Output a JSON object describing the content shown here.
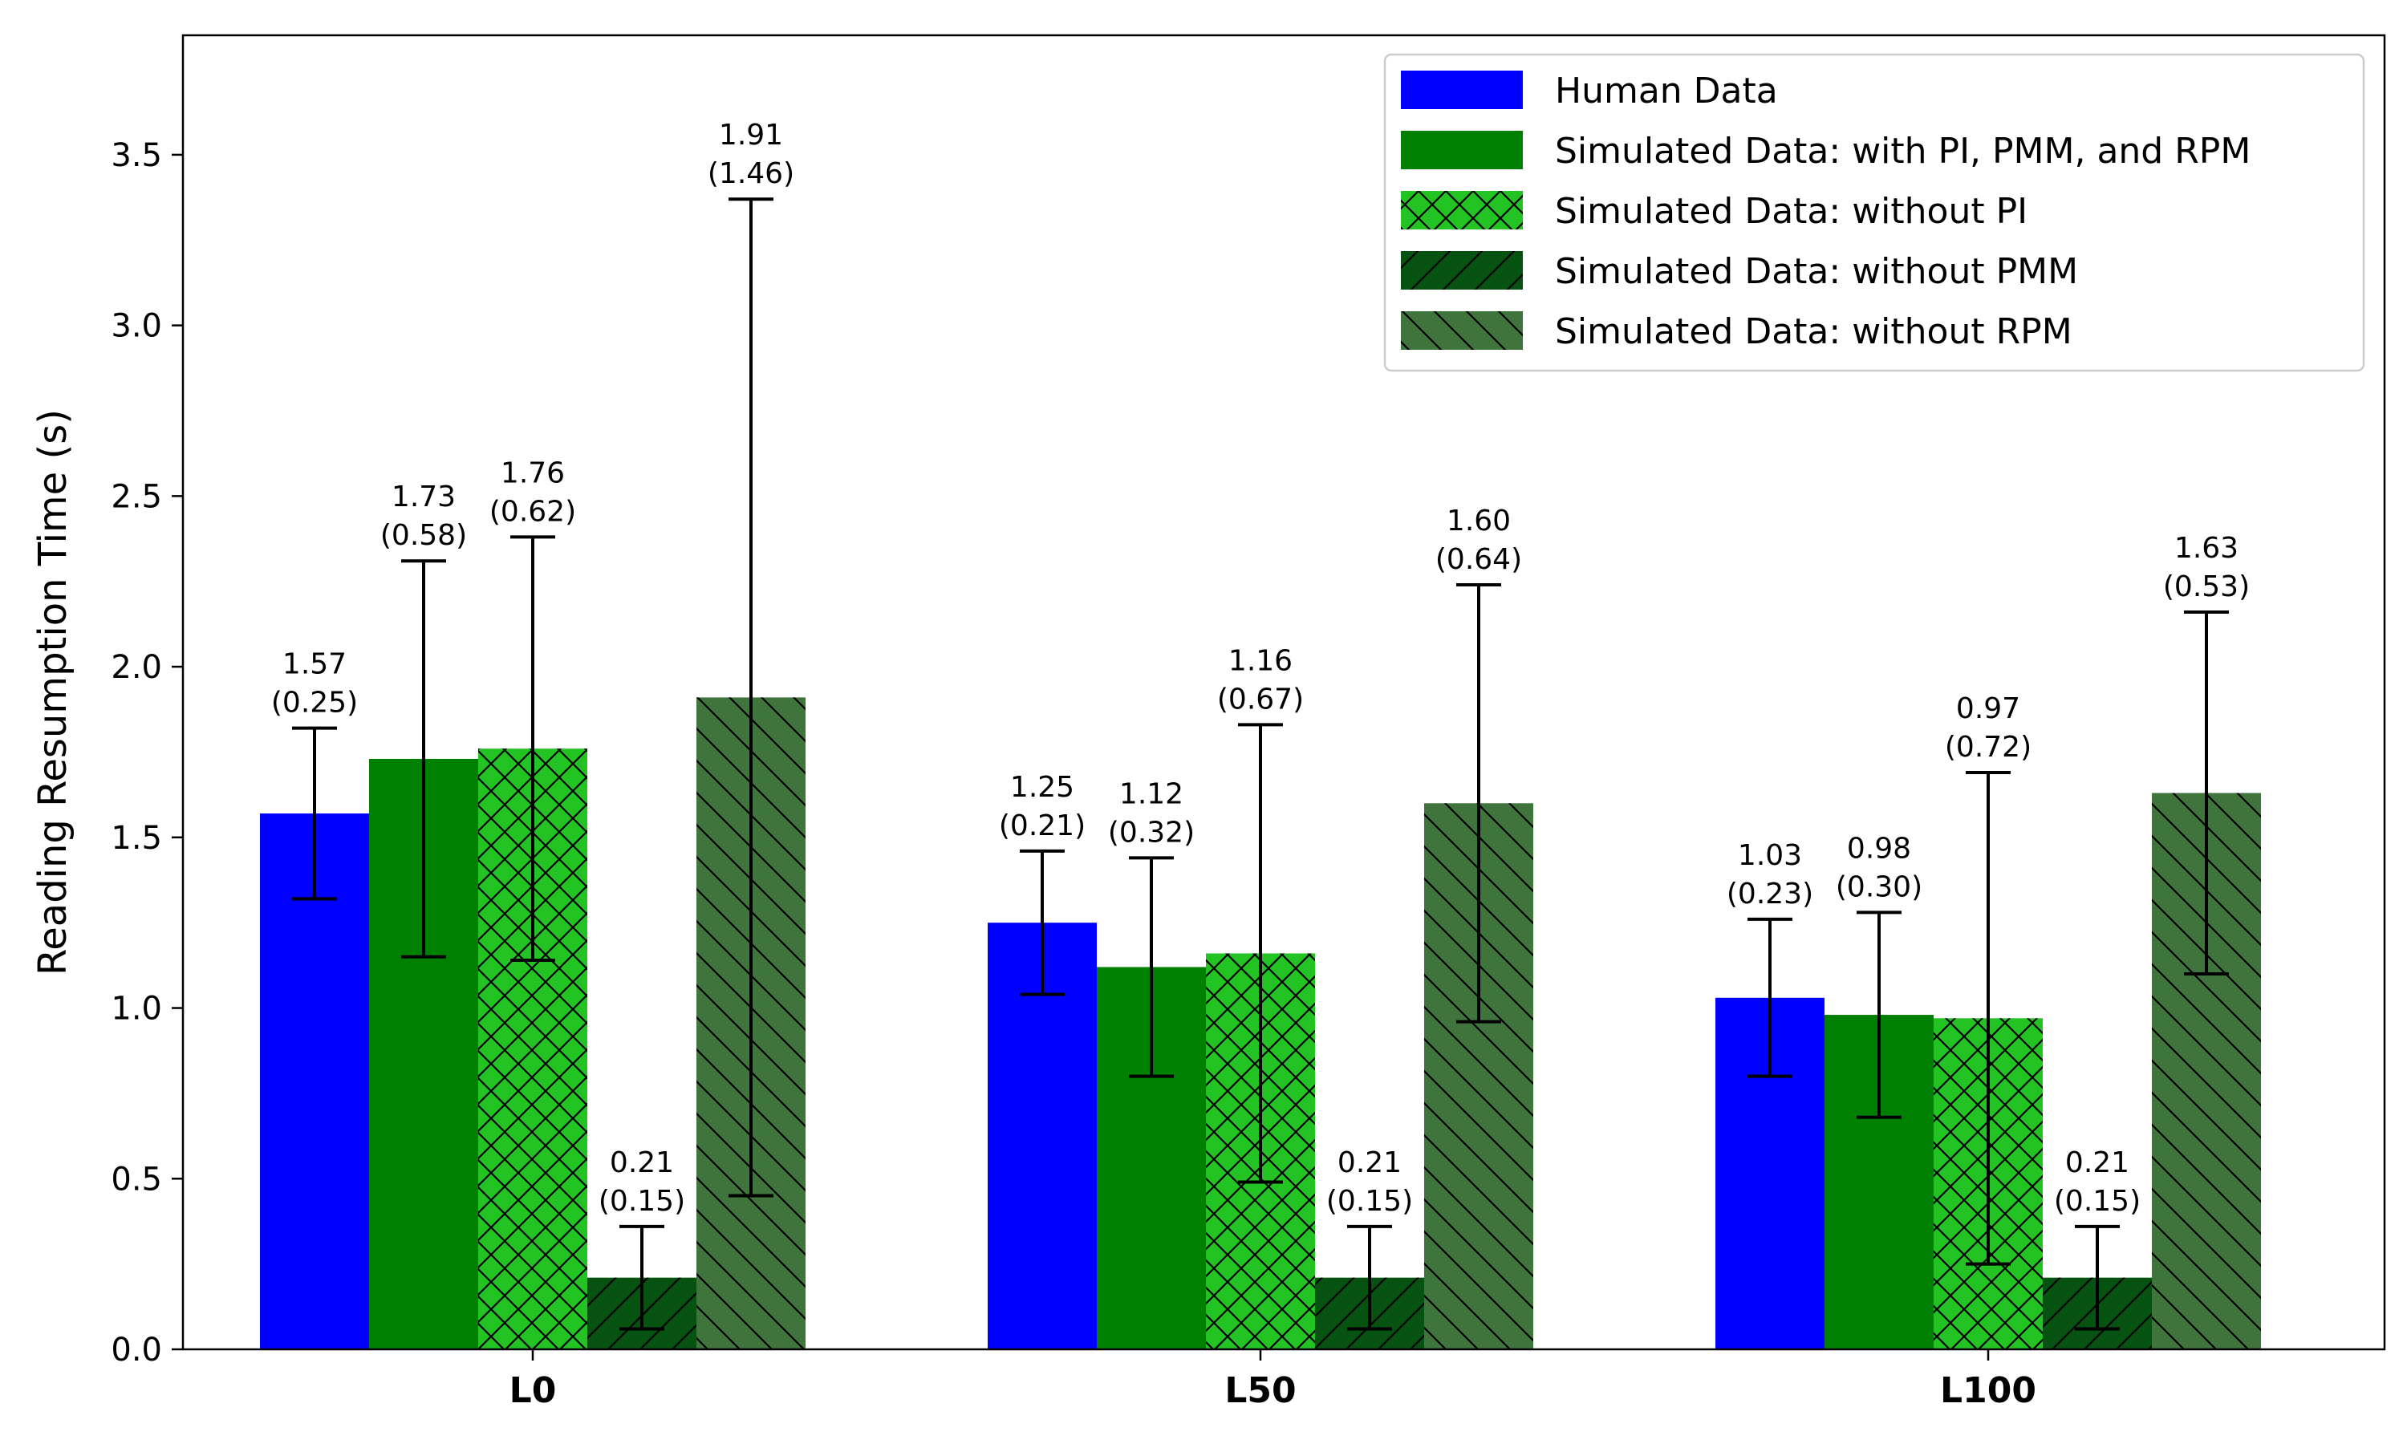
{
  "chart_data": {
    "type": "bar",
    "title": "",
    "xlabel": "",
    "ylabel": "Reading Resumption Time (s)",
    "ylim": [
      0,
      3.85
    ],
    "yticks": [
      "0.0",
      "0.5",
      "1.0",
      "1.5",
      "2.0",
      "2.5",
      "3.0",
      "3.5"
    ],
    "categories": [
      "L0",
      "L50",
      "L100"
    ],
    "grid": false,
    "legend_position": "top-right",
    "series": [
      {
        "name": "Human Data",
        "color": "#0000ff",
        "hatch": "none",
        "values": [
          1.57,
          1.25,
          1.03
        ],
        "errors": [
          0.25,
          0.21,
          0.23
        ],
        "labels": [
          [
            "1.57",
            "(0.25)"
          ],
          [
            "1.25",
            "(0.21)"
          ],
          [
            "1.03",
            "(0.23)"
          ]
        ]
      },
      {
        "name": "Simulated Data: with PI, PMM, and RPM",
        "color": "#008000",
        "hatch": "none",
        "values": [
          1.73,
          1.12,
          0.98
        ],
        "errors": [
          0.58,
          0.32,
          0.3
        ],
        "labels": [
          [
            "1.73",
            "(0.58)"
          ],
          [
            "1.12",
            "(0.32)"
          ],
          [
            "0.98",
            "(0.30)"
          ]
        ]
      },
      {
        "name": "Simulated Data: without PI",
        "color": "#22c322",
        "hatch": "cross",
        "values": [
          1.76,
          1.16,
          0.97
        ],
        "errors": [
          0.62,
          0.67,
          0.72
        ],
        "labels": [
          [
            "1.76",
            "(0.62)"
          ],
          [
            "1.16",
            "(0.67)"
          ],
          [
            "0.97",
            "(0.72)"
          ]
        ]
      },
      {
        "name": "Simulated Data: without PMM",
        "color": "#065210",
        "hatch": "forward",
        "values": [
          0.21,
          0.21,
          0.21
        ],
        "errors": [
          0.15,
          0.15,
          0.15
        ],
        "labels": [
          [
            "0.21",
            "(0.15)"
          ],
          [
            "0.21",
            "(0.15)"
          ],
          [
            "0.21",
            "(0.15)"
          ]
        ]
      },
      {
        "name": "Simulated Data: without RPM",
        "color": "#3f753c",
        "hatch": "back",
        "values": [
          1.91,
          1.6,
          1.63
        ],
        "errors": [
          1.46,
          0.64,
          0.53
        ],
        "labels": [
          [
            "1.91",
            "(1.46)"
          ],
          [
            "1.60",
            "(0.64)"
          ],
          [
            "1.63",
            "(0.53)"
          ]
        ]
      }
    ]
  }
}
